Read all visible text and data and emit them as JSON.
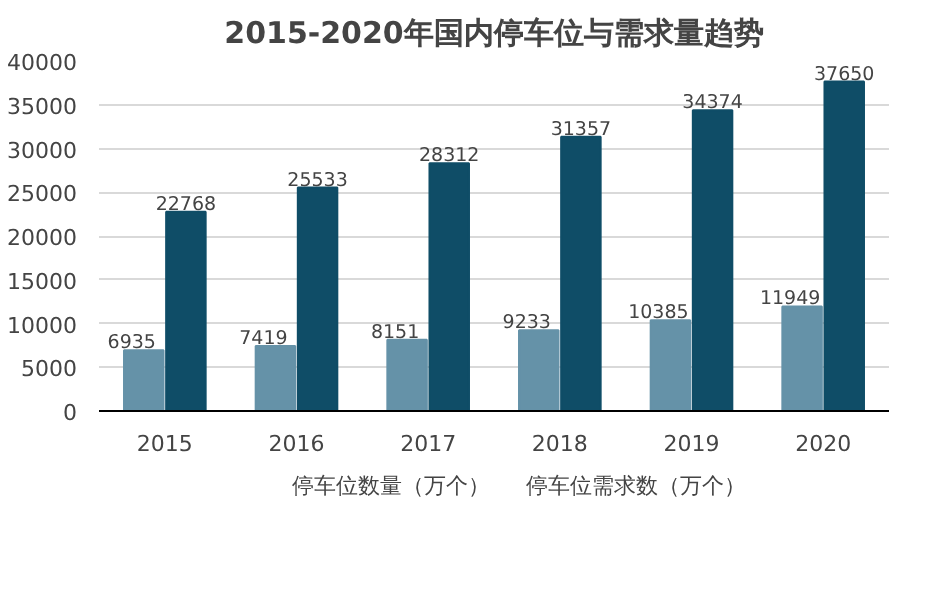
{
  "chart_data": {
    "type": "bar",
    "title": "2015-2020年国内停车位与需求量趋势",
    "categories": [
      "2015",
      "2016",
      "2017",
      "2018",
      "2019",
      "2020"
    ],
    "series": [
      {
        "name": "停车位数量（万个）",
        "color": "#6592a8",
        "values": [
          6935,
          7419,
          8151,
          9233,
          10385,
          11949
        ]
      },
      {
        "name": "停车位需求数（万个）",
        "color": "#0f4d67",
        "values": [
          22768,
          25533,
          28312,
          31357,
          34374,
          37650
        ]
      }
    ],
    "ylim": [
      0,
      40000
    ],
    "yticks": [
      0,
      5000,
      10000,
      15000,
      20000,
      25000,
      30000,
      35000,
      40000
    ],
    "grid": "y",
    "legend": "bottom",
    "data_labels": true
  }
}
